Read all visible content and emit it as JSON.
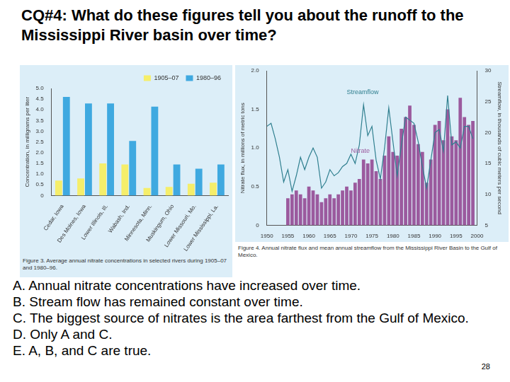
{
  "question": "CQ#4: What do these figures tell you about the runoff to the Mississippi River basin over time?",
  "chart_data": [
    {
      "type": "bar",
      "caption": "Figure 3.  Average annual nitrate concentrations in selected rivers during 1905–07 and 1980–96.",
      "y_label": "Concentration, in milligrams per liter",
      "categories": [
        "Cedar, Iowa",
        "Des Moines, Iowa",
        "Lower Illinois, Ill.",
        "Wabash, Ind.",
        "Minnesota, Minn.",
        "Muskingum, Ohio",
        "Lower Missouri, Mo.",
        "Lower Mississippi, La."
      ],
      "series": [
        {
          "name": "1905–07",
          "color": "#f5ee6a",
          "values": [
            0.7,
            0.8,
            1.5,
            1.45,
            0.35,
            0.4,
            0.55,
            0.6
          ]
        },
        {
          "name": "1980–96",
          "color": "#3fa9e0",
          "values": [
            4.6,
            4.3,
            4.3,
            2.55,
            4.15,
            1.45,
            1.25,
            1.45
          ]
        }
      ],
      "ylim": [
        0,
        5
      ],
      "yticks": [
        0,
        0.5,
        {
          "value": 1,
          "label": "1.0"
        },
        1.5,
        {
          "value": 2,
          "label": "2.0"
        },
        2.5,
        {
          "value": 3,
          "label": "3.0"
        },
        3.5,
        {
          "value": 4,
          "label": "4.0"
        },
        4.5,
        {
          "value": 5,
          "label": "5.0"
        }
      ],
      "legend": "upper right",
      "grid": false
    },
    {
      "type": "bar",
      "caption": "Figure 4.  Annual nitrate flux and mean annual streamflow from the Mississippi River Basin to the Gulf of Mexico.",
      "y_label": "Nitrate flux, in millions of metric tons",
      "y2_label": "Streamflow, in thousands of cubic meters per second",
      "annotations": [
        "Streamflow",
        "Nitrate"
      ],
      "x": [
        1950,
        1951,
        1952,
        1953,
        1954,
        1955,
        1956,
        1957,
        1958,
        1959,
        1960,
        1961,
        1962,
        1963,
        1964,
        1965,
        1966,
        1967,
        1968,
        1969,
        1970,
        1971,
        1972,
        1973,
        1974,
        1975,
        1976,
        1977,
        1978,
        1979,
        1980,
        1981,
        1982,
        1983,
        1984,
        1985,
        1986,
        1987,
        1988,
        1989,
        1990,
        1991,
        1992,
        1993,
        1994,
        1995,
        1996,
        1997,
        1998,
        1999
      ],
      "series": [
        {
          "name": "Nitrate",
          "type": "bar",
          "color": "#9b5a9e",
          "values": [
            null,
            null,
            null,
            null,
            null,
            0.35,
            0.4,
            0.45,
            0.4,
            0.35,
            0.5,
            0.45,
            0.4,
            0.3,
            0.35,
            0.4,
            0.35,
            0.4,
            0.45,
            0.5,
            0.45,
            0.55,
            0.6,
            0.85,
            0.8,
            0.85,
            0.7,
            0.6,
            0.9,
            1.15,
            0.95,
            0.9,
            1.25,
            1.4,
            1.55,
            1.3,
            1.05,
            0.95,
            0.55,
            0.85,
            1.3,
            1.35,
            1.1,
            1.5,
            1.15,
            1.1,
            1.65,
            1.4,
            1.3,
            1.35
          ]
        },
        {
          "name": "Streamflow",
          "type": "line",
          "axis": "y2",
          "color": "#2f7f8f",
          "values": [
            21,
            21.5,
            19,
            16,
            12,
            14,
            10.5,
            13,
            16,
            14,
            16,
            17.5,
            16,
            11,
            12,
            14,
            13,
            13.5,
            14.5,
            15,
            16.5,
            15,
            18,
            24.5,
            19.5,
            21,
            15.5,
            12.5,
            17.5,
            24,
            18.5,
            13,
            18,
            22.5,
            22,
            21.5,
            18.5,
            14.5,
            11,
            15.5,
            20,
            20.5,
            17,
            26,
            18,
            18.5,
            17.5,
            21,
            21,
            19
          ]
        }
      ],
      "xlim": [
        1950,
        2000
      ],
      "xticks": [
        1950,
        1955,
        1960,
        1965,
        1970,
        1975,
        1980,
        1985,
        1990,
        1995,
        2000
      ],
      "ylim": [
        0,
        2
      ],
      "yticks": [
        0,
        0.5,
        {
          "value": 1,
          "label": "1.0"
        },
        1.5,
        {
          "value": 2,
          "label": "2.0"
        }
      ],
      "y2lim": [
        5,
        30
      ],
      "y2ticks": [
        5,
        10,
        15,
        20,
        25,
        30
      ],
      "legend": false,
      "grid": false
    }
  ],
  "options": [
    "A. Annual nitrate concentrations have increased over time.",
    "B. Stream flow has remained constant over time.",
    "C. The biggest source of nitrates is the area farthest from the Gulf of Mexico.",
    "D. Only A and C.",
    "E. A, B, and C are true."
  ],
  "page_number": 28
}
